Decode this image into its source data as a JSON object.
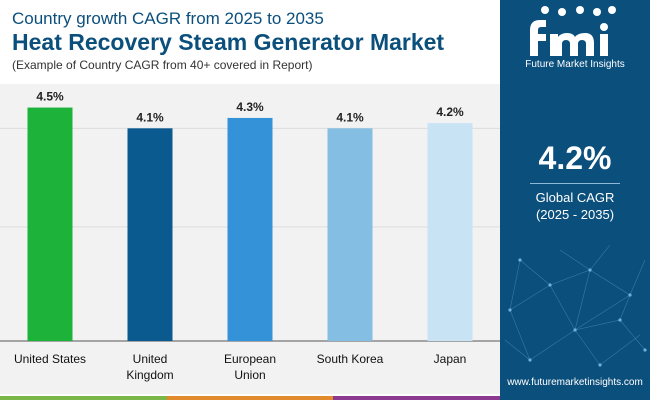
{
  "header": {
    "subtitle": "Country growth CAGR from 2025 to 2035",
    "title": "Heat Recovery Steam Generator Market",
    "note": "(Example of Country CAGR from 40+ covered in Report)"
  },
  "sidebar": {
    "logo_text": "Future Market Insights",
    "cagr_value": "4.2%",
    "cagr_label": "Global CAGR",
    "cagr_period": "(2025 - 2035)",
    "website": "www.futuremarketinsights.com"
  },
  "colors": {
    "brand_blue": "#0b4f7c",
    "bar_colors": [
      "#1db33a",
      "#0b5a8f",
      "#3392d8",
      "#84bee3",
      "#c7e3f4"
    ],
    "footer_stripes": [
      "#7ab648",
      "#e28b2c",
      "#8b3a8f"
    ]
  },
  "chart_data": {
    "type": "bar",
    "title": "Heat Recovery Steam Generator Market",
    "categories": [
      "United States",
      "United Kingdom",
      "European Union",
      "South Korea",
      "Japan"
    ],
    "category_lines": [
      [
        "United States"
      ],
      [
        "United",
        "Kingdom"
      ],
      [
        "European",
        "Union"
      ],
      [
        "South Korea"
      ],
      [
        "Japan"
      ]
    ],
    "values": [
      4.5,
      4.1,
      4.3,
      4.1,
      4.2
    ],
    "labels": [
      "4.5%",
      "4.1%",
      "4.3%",
      "4.1%",
      "4.2%"
    ],
    "unit": "%",
    "ylim": [
      0,
      4.8
    ],
    "gridlines": [
      2.2,
      4.1
    ],
    "xlabel": "",
    "ylabel": ""
  }
}
